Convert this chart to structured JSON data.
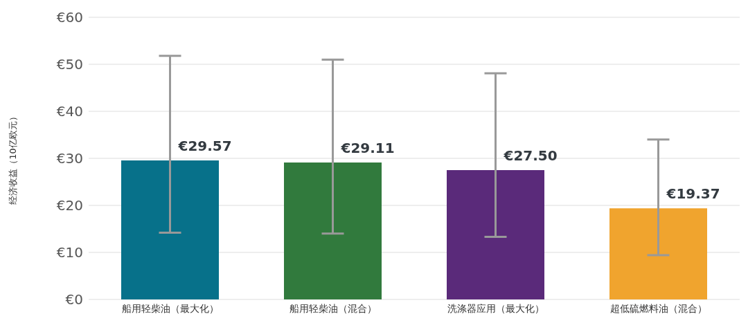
{
  "chart_data": {
    "type": "bar",
    "ylabel": "经济收益（10亿欧元）",
    "categories": [
      "船用轻柴油（最大化）",
      "船用轻柴油（混合）",
      "洗涤器应用（最大化）",
      "超低硫燃料油（混合）"
    ],
    "values": [
      29.57,
      29.11,
      27.5,
      19.37
    ],
    "colors": [
      "#07718a",
      "#317a3d",
      "#5a2a7a",
      "#f0a42e"
    ],
    "errors": [
      [
        14.2,
        51.8
      ],
      [
        14.0,
        51.0
      ],
      [
        13.3,
        48.1
      ],
      [
        9.4,
        34.0
      ]
    ],
    "value_labels": [
      "€29.57",
      "€29.11",
      "€27.50",
      "€19.37"
    ],
    "ylim": [
      0,
      60
    ],
    "yticks": [
      {
        "value": 0,
        "label": "€0"
      },
      {
        "value": 10,
        "label": "€10"
      },
      {
        "value": 20,
        "label": "€20"
      },
      {
        "value": 30,
        "label": "€30"
      },
      {
        "value": 40,
        "label": "€40"
      },
      {
        "value": 50,
        "label": "€50"
      },
      {
        "value": 60,
        "label": "€60"
      }
    ],
    "grid": "y",
    "legend": false
  }
}
